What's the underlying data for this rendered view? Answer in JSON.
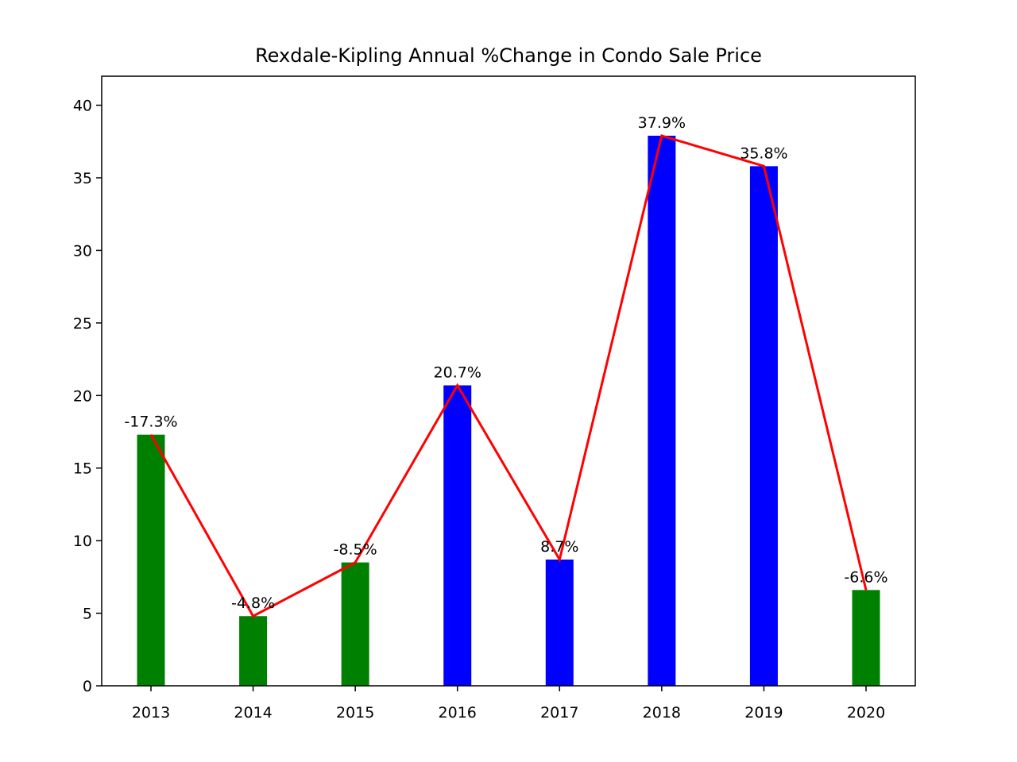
{
  "chart_data": {
    "type": "bar",
    "title": "Rexdale-Kipling Annual %Change in Condo Sale Price",
    "xlabel": "",
    "ylabel": "",
    "categories": [
      "2013",
      "2014",
      "2015",
      "2016",
      "2017",
      "2018",
      "2019",
      "2020"
    ],
    "values": [
      17.3,
      4.8,
      8.5,
      20.7,
      8.7,
      37.9,
      35.8,
      6.6
    ],
    "data_labels": [
      "-17.3%",
      "-4.8%",
      "-8.5%",
      "20.7%",
      "8.7%",
      "37.9%",
      "35.8%",
      "-6.6%"
    ],
    "bar_colors": [
      "#008000",
      "#008000",
      "#008000",
      "#0000ff",
      "#0000ff",
      "#0000ff",
      "#0000ff",
      "#008000"
    ],
    "line_series": {
      "name": "trend",
      "values": [
        17.3,
        4.8,
        8.5,
        20.7,
        8.7,
        37.9,
        35.8,
        6.6
      ],
      "color": "#ff0000"
    },
    "ylim": [
      0,
      42
    ],
    "yticks": [
      0,
      5,
      10,
      15,
      20,
      25,
      30,
      35,
      40
    ],
    "grid": false,
    "legend": "none"
  }
}
